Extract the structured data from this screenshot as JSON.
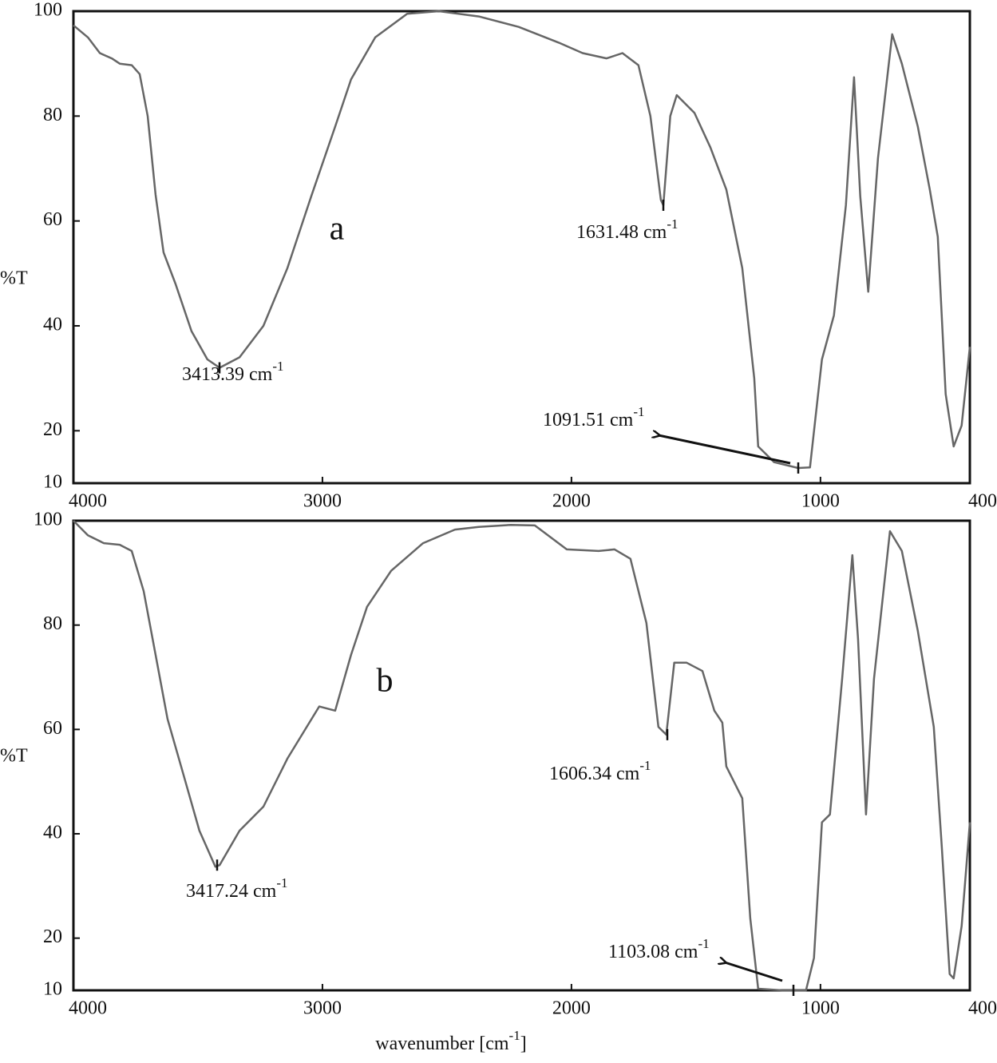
{
  "chart_data": [
    {
      "type": "line",
      "panel_label": "a",
      "y_label": "%T",
      "xlim": [
        4000,
        400
      ],
      "xticks": [
        4000,
        3000,
        2000,
        1000,
        400
      ],
      "ylim": [
        10,
        100
      ],
      "yticks": [
        10,
        20,
        40,
        60,
        80,
        100
      ],
      "color": "#666666",
      "x": [
        4000,
        3942,
        3894,
        3846,
        3814,
        3766,
        3734,
        3702,
        3670,
        3638,
        3590,
        3526,
        3462,
        3413,
        3333,
        3237,
        3141,
        3045,
        2949,
        2885,
        2788,
        2660,
        2532,
        2372,
        2212,
        2051,
        1955,
        1859,
        1795,
        1731,
        1683,
        1641,
        1631,
        1603,
        1577,
        1506,
        1442,
        1378,
        1314,
        1266,
        1250,
        1186,
        1090,
        1042,
        994,
        946,
        898,
        865,
        840,
        808,
        769,
        712,
        673,
        609,
        561,
        529,
        497,
        465,
        433,
        400
      ],
      "values": [
        97.3,
        95,
        92,
        91,
        90,
        89.7,
        88,
        80,
        65,
        54,
        48,
        39,
        33.6,
        32,
        34,
        40,
        51,
        64.7,
        78,
        87,
        95,
        99.5,
        100,
        99,
        97,
        94,
        92,
        91,
        92,
        89.7,
        80,
        64,
        63,
        80,
        84,
        80.6,
        74,
        66,
        51,
        30,
        17,
        14,
        12.9,
        13,
        33.6,
        42,
        63,
        87.4,
        64.7,
        46.5,
        72,
        95.6,
        90,
        78,
        66,
        57,
        27,
        17,
        21,
        36
      ],
      "annotations": [
        {
          "text": "3413.39 cm",
          "sup": "-1"
        },
        {
          "text": "1631.48 cm",
          "sup": "-1"
        },
        {
          "text": "1091.51 cm",
          "sup": "-1"
        }
      ]
    },
    {
      "type": "line",
      "panel_label": "b",
      "y_label": "%T",
      "x_label": "wavenumber [cm",
      "x_label_sup": "-1",
      "x_label_end": "]",
      "xlim": [
        4000,
        400
      ],
      "xticks": [
        4000,
        3000,
        2000,
        1000,
        400
      ],
      "ylim": [
        10,
        100
      ],
      "yticks": [
        10,
        20,
        40,
        60,
        80,
        100
      ],
      "color": "#666666",
      "x": [
        4000,
        3942,
        3878,
        3814,
        3766,
        3718,
        3670,
        3622,
        3558,
        3494,
        3430,
        3413,
        3333,
        3237,
        3141,
        3013,
        2949,
        2885,
        2821,
        2724,
        2596,
        2468,
        2372,
        2244,
        2147,
        2019,
        1891,
        1827,
        1763,
        1699,
        1651,
        1619,
        1587,
        1538,
        1474,
        1426,
        1394,
        1378,
        1314,
        1282,
        1250,
        1154,
        1058,
        1026,
        994,
        962,
        913,
        872,
        849,
        817,
        785,
        721,
        673,
        609,
        545,
        513,
        481,
        465,
        433,
        400
      ],
      "values": [
        100,
        97.2,
        95.7,
        95.4,
        94.2,
        86.5,
        74.3,
        62,
        51.3,
        40.6,
        33.7,
        34,
        40.6,
        45.2,
        54.4,
        64.4,
        63.6,
        74.3,
        83.5,
        90.4,
        95.7,
        98.3,
        98.8,
        99.2,
        99.1,
        94.5,
        94.2,
        94.5,
        92.7,
        80.4,
        60.5,
        59,
        72.8,
        72.8,
        71.2,
        63.6,
        61.3,
        52.9,
        46.8,
        23.8,
        10.3,
        10,
        10,
        16.2,
        42.2,
        43.7,
        69.7,
        93.4,
        77.4,
        43.7,
        69.7,
        98,
        94.2,
        78.9,
        60.5,
        37.6,
        13.1,
        12.3,
        22.3,
        42.2
      ],
      "annotations": [
        {
          "text": "3417.24 cm",
          "sup": "-1"
        },
        {
          "text": "1606.34 cm",
          "sup": "-1"
        },
        {
          "text": "1103.08 cm",
          "sup": "-1"
        }
      ]
    }
  ]
}
